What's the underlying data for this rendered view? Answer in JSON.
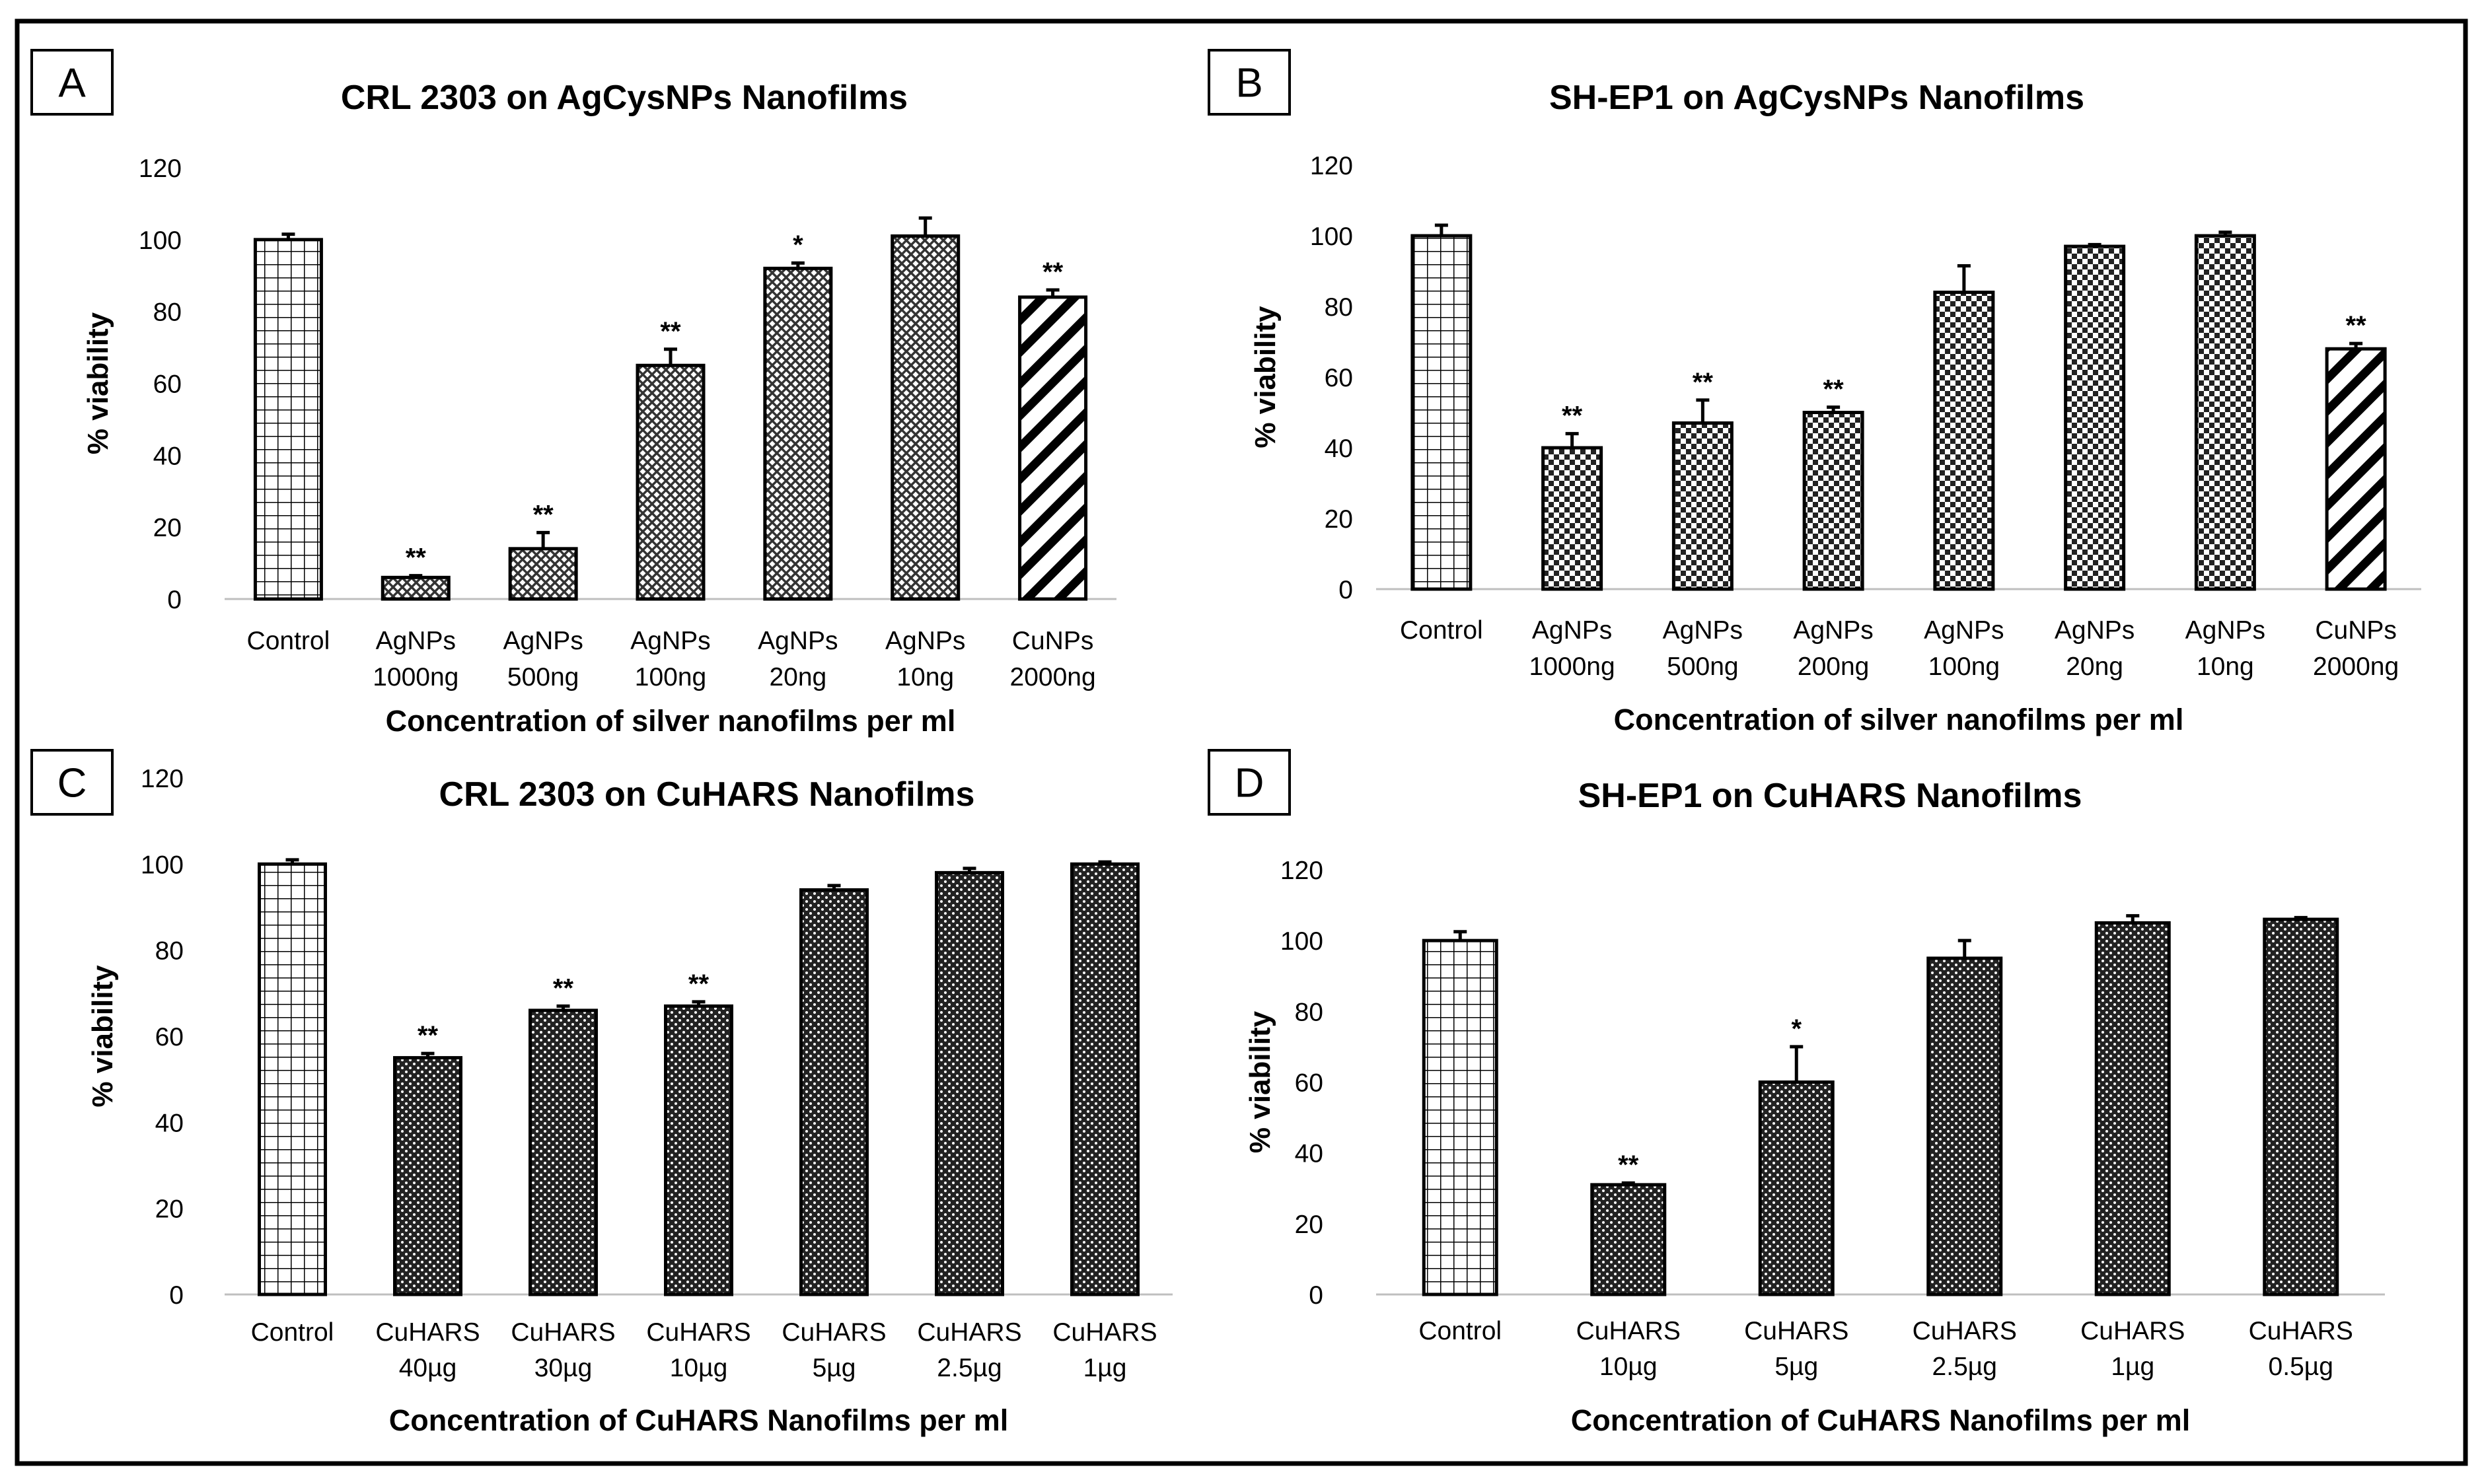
{
  "chart_data": [
    {
      "panel": "A",
      "type": "bar",
      "title": "CRL 2303 on AgCysNPs Nanofilms",
      "xlabel": "Concentration of silver nanofilms per ml",
      "ylabel": "% viability",
      "ylim": [
        0,
        120
      ],
      "yticks": [
        "0",
        "20",
        "40",
        "60",
        "80",
        "100",
        "120"
      ],
      "categories": [
        [
          "Control"
        ],
        [
          "AgNPs",
          "1000ng"
        ],
        [
          "AgNPs",
          "500ng"
        ],
        [
          "AgNPs",
          "100ng"
        ],
        [
          "AgNPs",
          "20ng"
        ],
        [
          "AgNPs",
          "10ng"
        ],
        [
          "CuNPs",
          "2000ng"
        ]
      ],
      "values": [
        100,
        6,
        14,
        65,
        92,
        101,
        84
      ],
      "errors": [
        1.5,
        0.5,
        4.5,
        4.5,
        1.5,
        5,
        2
      ],
      "significance": [
        "",
        "**",
        "**",
        "**",
        "*",
        "",
        "**"
      ],
      "patterns": [
        "grid",
        "dots",
        "dots",
        "dots",
        "dots",
        "dots",
        "diag"
      ]
    },
    {
      "panel": "B",
      "type": "bar",
      "title": "SH-EP1 on AgCysNPs Nanofilms",
      "xlabel": "Concentration of silver nanofilms per ml",
      "ylabel": "% viability",
      "ylim": [
        0,
        120
      ],
      "yticks": [
        "0",
        "20",
        "40",
        "60",
        "80",
        "100",
        "120"
      ],
      "categories": [
        [
          "Control"
        ],
        [
          "AgNPs",
          "1000ng"
        ],
        [
          "AgNPs",
          "500ng"
        ],
        [
          "AgNPs",
          "200ng"
        ],
        [
          "AgNPs",
          "100ng"
        ],
        [
          "AgNPs",
          "20ng"
        ],
        [
          "AgNPs",
          "10ng"
        ],
        [
          "CuNPs",
          "2000ng"
        ]
      ],
      "values": [
        100,
        40,
        47,
        50,
        84,
        97,
        100,
        68
      ],
      "errors": [
        3,
        4,
        6.5,
        1.5,
        7.5,
        0.5,
        1,
        1.5
      ],
      "significance": [
        "",
        "**",
        "**",
        "**",
        "",
        "",
        "",
        "**"
      ],
      "patterns": [
        "grid",
        "checker",
        "checker",
        "checker",
        "checker",
        "checker",
        "checker",
        "diag"
      ]
    },
    {
      "panel": "C",
      "type": "bar",
      "title": "CRL 2303 on CuHARS Nanofilms",
      "xlabel": "Concentration of CuHARS Nanofilms per ml",
      "ylabel": "% viability",
      "ylim": [
        0,
        120
      ],
      "yticks": [
        "0",
        "20",
        "40",
        "60",
        "80",
        "100",
        "120"
      ],
      "categories": [
        [
          "Control"
        ],
        [
          "CuHARS",
          "40µg"
        ],
        [
          "CuHARS",
          "30µg"
        ],
        [
          "CuHARS",
          "10µg"
        ],
        [
          "CuHARS",
          "5µg"
        ],
        [
          "CuHARS",
          "2.5µg"
        ],
        [
          "CuHARS",
          "1µg"
        ]
      ],
      "values": [
        100,
        55,
        66,
        67,
        94,
        98,
        100
      ],
      "errors": [
        1,
        1,
        1,
        1,
        1,
        1,
        0.5
      ],
      "significance": [
        "",
        "**",
        "**",
        "**",
        "",
        "",
        ""
      ],
      "patterns": [
        "grid",
        "dense",
        "dense",
        "dense",
        "dense",
        "dense",
        "dense"
      ]
    },
    {
      "panel": "D",
      "type": "bar",
      "title": "SH-EP1 on CuHARS Nanofilms",
      "xlabel": "Concentration of CuHARS Nanofilms per ml",
      "ylabel": "% viability",
      "ylim": [
        0,
        120
      ],
      "yticks": [
        "0",
        "20",
        "40",
        "60",
        "80",
        "100",
        "120"
      ],
      "categories": [
        [
          "Control"
        ],
        [
          "CuHARS",
          "10µg"
        ],
        [
          "CuHARS",
          "5µg"
        ],
        [
          "CuHARS",
          "2.5µg"
        ],
        [
          "CuHARS",
          "1µg"
        ],
        [
          "CuHARS",
          "0.5µg"
        ]
      ],
      "values": [
        100,
        31,
        60,
        95,
        105,
        106
      ],
      "errors": [
        2.5,
        0.5,
        10,
        5,
        2,
        0.5
      ],
      "significance": [
        "",
        "**",
        "*",
        "",
        "",
        ""
      ],
      "patterns": [
        "grid",
        "dense",
        "dense",
        "dense",
        "dense",
        "dense"
      ]
    }
  ]
}
